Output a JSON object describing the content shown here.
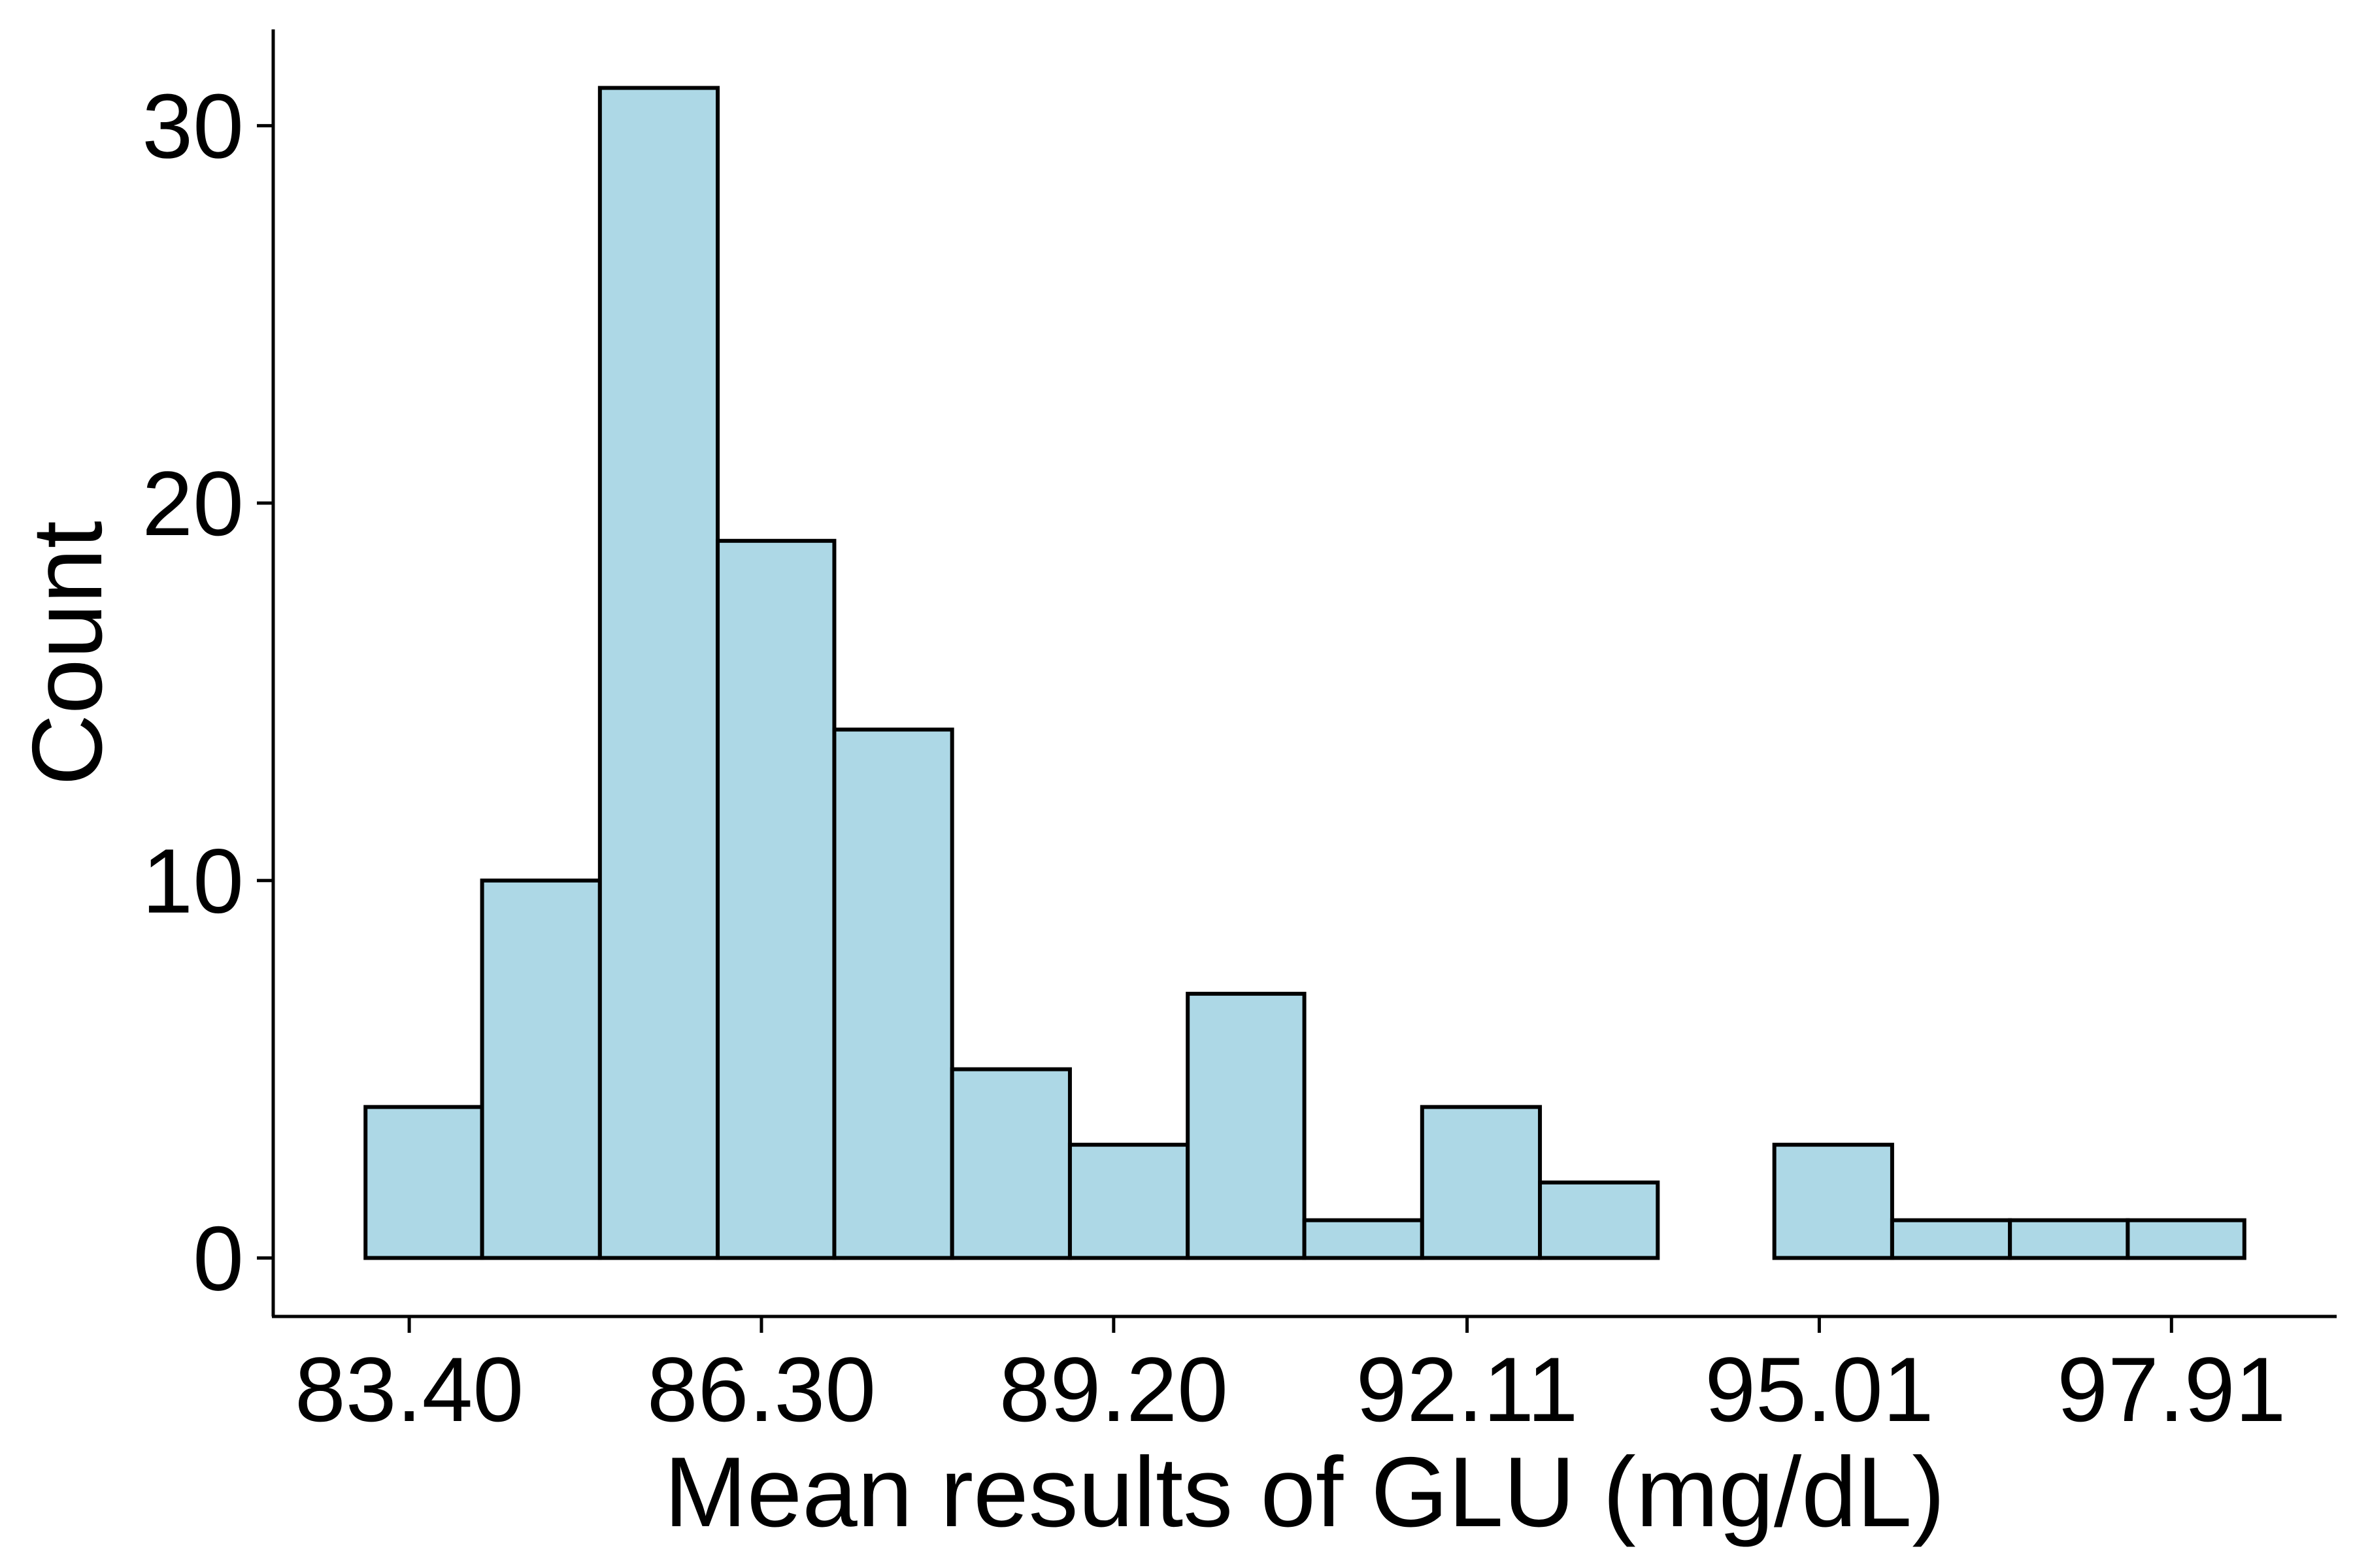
{
  "chart_data": {
    "type": "bar",
    "subtype": "histogram",
    "title": "",
    "xlabel": "Mean results of GLU (mg/dL)",
    "ylabel": "Count",
    "bins": [
      {
        "x0": 83.04,
        "x1": 84.0,
        "count": 4
      },
      {
        "x0": 84.0,
        "x1": 84.97,
        "count": 10
      },
      {
        "x0": 84.97,
        "x1": 85.94,
        "count": 31
      },
      {
        "x0": 85.94,
        "x1": 86.9,
        "count": 19
      },
      {
        "x0": 86.9,
        "x1": 87.87,
        "count": 14
      },
      {
        "x0": 87.87,
        "x1": 88.84,
        "count": 5
      },
      {
        "x0": 88.84,
        "x1": 89.81,
        "count": 3
      },
      {
        "x0": 89.81,
        "x1": 90.77,
        "count": 7
      },
      {
        "x0": 90.77,
        "x1": 91.74,
        "count": 1
      },
      {
        "x0": 91.74,
        "x1": 92.71,
        "count": 4
      },
      {
        "x0": 92.71,
        "x1": 93.68,
        "count": 2
      },
      {
        "x0": 93.68,
        "x1": 94.64,
        "count": 0
      },
      {
        "x0": 94.64,
        "x1": 95.61,
        "count": 3
      },
      {
        "x0": 95.61,
        "x1": 96.58,
        "count": 1
      },
      {
        "x0": 96.58,
        "x1": 97.55,
        "count": 1
      },
      {
        "x0": 97.55,
        "x1": 98.51,
        "count": 1
      }
    ],
    "x_ticks": [
      "83.40",
      "86.30",
      "89.20",
      "92.11",
      "95.01",
      "97.91"
    ],
    "y_ticks": [
      "0",
      "10",
      "20",
      "30"
    ],
    "xlim": [
      82.28,
      99.27
    ],
    "ylim": [
      -1.55,
      32.55
    ],
    "bar_fill": "#add8e6",
    "bar_stroke": "#000000",
    "grid": false,
    "legend": "none"
  }
}
